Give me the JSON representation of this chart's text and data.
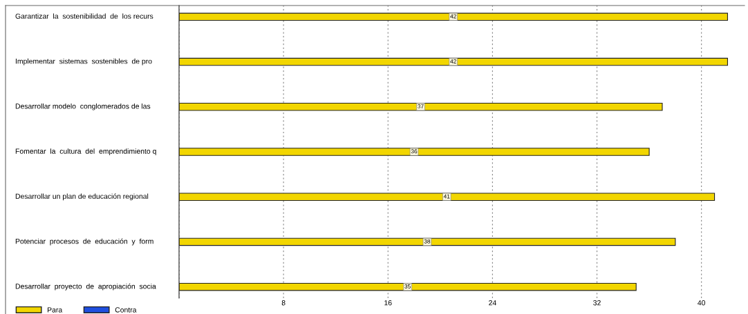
{
  "chart_data": {
    "type": "bar",
    "orientation": "horizontal",
    "categories": [
      "Garantizar  la  sostenibilidad  de  los recurs",
      "Implementar  sistemas  sostenibles  de pro",
      "Desarrollar modelo  conglomerados de las",
      "Fomentar  la  cultura  del  emprendimiento q",
      "Desarrollar un plan de educación regional",
      "Potenciar  procesos  de  educación  y  form",
      "Desarrollar  proyecto  de  apropiación  socia"
    ],
    "series": [
      {
        "name": "Para",
        "color": "#f2d600",
        "values": [
          42,
          42,
          37,
          36,
          41,
          38,
          35
        ]
      },
      {
        "name": "Contra",
        "color": "#1f4fe0",
        "values": [
          null,
          null,
          null,
          null,
          null,
          null,
          null
        ]
      }
    ],
    "xlim": [
      0,
      43.3
    ],
    "xticks": [
      {
        "value": 0,
        "label": null
      },
      8,
      16,
      24,
      32,
      40
    ],
    "grid": "x",
    "legend": "bottom left",
    "data_labels": true
  }
}
